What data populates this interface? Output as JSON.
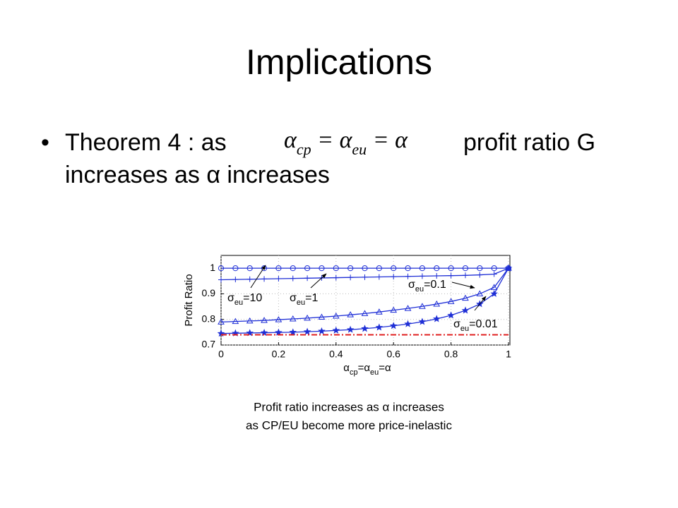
{
  "slide": {
    "title": "Implications",
    "bullet": {
      "lead": "Theorem 4 : as",
      "formula": [
        "α",
        "cp",
        " = α",
        "eu",
        " = α"
      ],
      "tail": "profit ratio G",
      "line2": "increases as α increases"
    },
    "caption": [
      "Profit ratio increases as α increases",
      "as CP/EU become more price-inelastic"
    ]
  },
  "chart_data": {
    "type": "line",
    "ylabel": "Profit Ratio",
    "xlabel": [
      "α",
      "cp",
      "=α",
      "eu",
      "=α"
    ],
    "xlim": [
      0,
      1
    ],
    "ylim": [
      0.7,
      1.05
    ],
    "xticks": [
      0,
      0.2,
      0.4,
      0.6,
      0.8,
      1
    ],
    "yticks": [
      0.7,
      0.8,
      0.9,
      1
    ],
    "grid": true,
    "x": [
      0,
      0.05,
      0.1,
      0.15,
      0.2,
      0.25,
      0.3,
      0.35,
      0.4,
      0.45,
      0.5,
      0.55,
      0.6,
      0.65,
      0.7,
      0.75,
      0.8,
      0.85,
      0.9,
      0.95,
      1
    ],
    "series": [
      {
        "color": "#1f2fd6",
        "marker": "circle",
        "values": [
          1,
          1,
          1,
          1,
          1,
          1,
          1,
          1,
          1,
          1,
          1,
          1,
          1,
          1,
          1,
          1,
          1,
          1,
          1,
          1,
          1
        ]
      },
      {
        "color": "#1f2fd6",
        "marker": "plus",
        "values": [
          0.955,
          0.956,
          0.957,
          0.958,
          0.959,
          0.96,
          0.961,
          0.962,
          0.963,
          0.964,
          0.965,
          0.966,
          0.967,
          0.968,
          0.969,
          0.97,
          0.971,
          0.972,
          0.974,
          0.977,
          1
        ]
      },
      {
        "color": "#1f2fd6",
        "marker": "triangle",
        "values": [
          0.79,
          0.792,
          0.794,
          0.796,
          0.799,
          0.802,
          0.805,
          0.809,
          0.813,
          0.818,
          0.823,
          0.829,
          0.836,
          0.843,
          0.851,
          0.86,
          0.87,
          0.883,
          0.9,
          0.925,
          1
        ]
      },
      {
        "color": "#1f2fd6",
        "marker": "star",
        "values": [
          0.745,
          0.746,
          0.747,
          0.748,
          0.749,
          0.75,
          0.752,
          0.754,
          0.757,
          0.76,
          0.764,
          0.769,
          0.775,
          0.782,
          0.791,
          0.802,
          0.816,
          0.835,
          0.86,
          0.9,
          1
        ]
      },
      {
        "color": "#e02020",
        "marker": "none",
        "dash": "dashdot",
        "values": [
          0.74,
          0.74,
          0.74,
          0.74,
          0.74,
          0.74,
          0.74,
          0.74,
          0.74,
          0.74,
          0.74,
          0.74,
          0.74,
          0.74,
          0.74,
          0.74,
          0.74,
          0.74,
          0.74,
          0.74,
          0.74
        ]
      }
    ],
    "annotations": [
      [
        "σ",
        "eu",
        "=10"
      ],
      [
        "σ",
        "eu",
        "=1"
      ],
      [
        "σ",
        "eu",
        "=0.1"
      ],
      [
        "σ",
        "eu",
        "=0.01"
      ]
    ]
  }
}
